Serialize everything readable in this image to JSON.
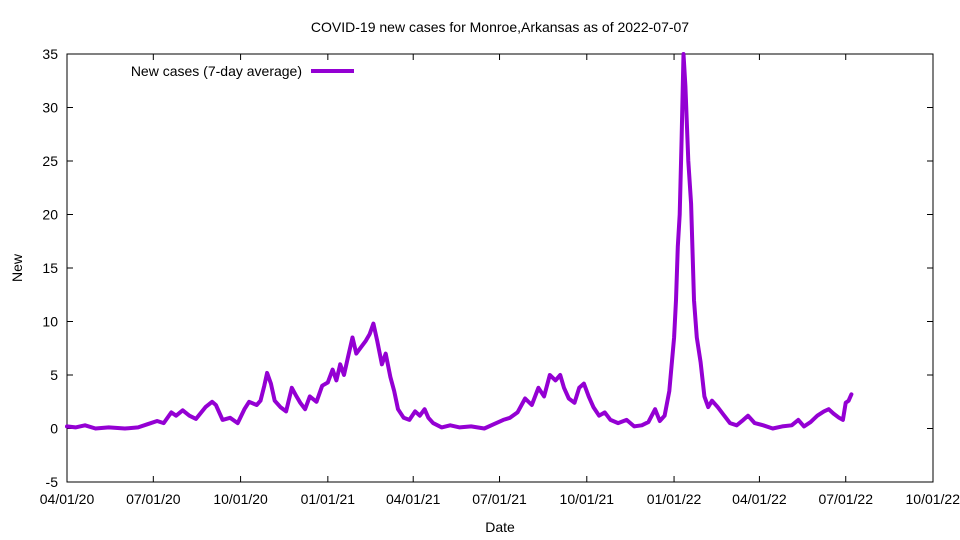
{
  "chart_data": {
    "type": "line",
    "title": "COVID-19 new cases for Monroe,Arkansas as of 2022-07-07",
    "xlabel": "Date",
    "ylabel": "New",
    "xlim": [
      "2020-04-01",
      "2022-10-01"
    ],
    "ylim": [
      -5,
      35
    ],
    "yticks": [
      -5,
      0,
      5,
      10,
      15,
      20,
      25,
      30,
      35
    ],
    "xtick_dates": [
      "2020-04-01",
      "2020-07-01",
      "2020-10-01",
      "2021-01-01",
      "2021-04-01",
      "2021-07-01",
      "2021-10-01",
      "2022-01-01",
      "2022-04-01",
      "2022-07-01",
      "2022-10-01"
    ],
    "xtick_labels": [
      "04/01/20",
      "07/01/20",
      "10/01/20",
      "01/01/21",
      "04/01/21",
      "07/01/21",
      "10/01/21",
      "01/01/22",
      "04/01/22",
      "07/01/22",
      "10/01/22"
    ],
    "grid": false,
    "legend_position": "top-left",
    "series_color": "#9400d3",
    "series": [
      {
        "name": "New cases (7-day average)",
        "points": [
          [
            "2020-04-01",
            0.2
          ],
          [
            "2020-04-10",
            0.1
          ],
          [
            "2020-04-20",
            0.3
          ],
          [
            "2020-05-01",
            0.0
          ],
          [
            "2020-05-15",
            0.1
          ],
          [
            "2020-06-01",
            0.0
          ],
          [
            "2020-06-15",
            0.1
          ],
          [
            "2020-06-25",
            0.4
          ],
          [
            "2020-07-05",
            0.7
          ],
          [
            "2020-07-12",
            0.5
          ],
          [
            "2020-07-20",
            1.5
          ],
          [
            "2020-07-25",
            1.2
          ],
          [
            "2020-08-01",
            1.7
          ],
          [
            "2020-08-08",
            1.2
          ],
          [
            "2020-08-15",
            0.9
          ],
          [
            "2020-08-25",
            2.0
          ],
          [
            "2020-09-01",
            2.5
          ],
          [
            "2020-09-05",
            2.2
          ],
          [
            "2020-09-12",
            0.8
          ],
          [
            "2020-09-20",
            1.0
          ],
          [
            "2020-09-28",
            0.5
          ],
          [
            "2020-10-05",
            1.8
          ],
          [
            "2020-10-10",
            2.5
          ],
          [
            "2020-10-18",
            2.2
          ],
          [
            "2020-10-22",
            2.6
          ],
          [
            "2020-10-26",
            4.0
          ],
          [
            "2020-10-29",
            5.2
          ],
          [
            "2020-11-02",
            4.2
          ],
          [
            "2020-11-06",
            2.6
          ],
          [
            "2020-11-12",
            2.0
          ],
          [
            "2020-11-18",
            1.6
          ],
          [
            "2020-11-24",
            3.8
          ],
          [
            "2020-11-29",
            3.0
          ],
          [
            "2020-12-03",
            2.4
          ],
          [
            "2020-12-08",
            1.8
          ],
          [
            "2020-12-13",
            3.0
          ],
          [
            "2020-12-20",
            2.5
          ],
          [
            "2020-12-26",
            4.0
          ],
          [
            "2021-01-01",
            4.3
          ],
          [
            "2021-01-06",
            5.5
          ],
          [
            "2021-01-10",
            4.5
          ],
          [
            "2021-01-14",
            6.0
          ],
          [
            "2021-01-18",
            5.0
          ],
          [
            "2021-01-22",
            6.6
          ],
          [
            "2021-01-27",
            8.5
          ],
          [
            "2021-01-31",
            7.0
          ],
          [
            "2021-02-05",
            7.6
          ],
          [
            "2021-02-10",
            8.2
          ],
          [
            "2021-02-14",
            8.8
          ],
          [
            "2021-02-18",
            9.8
          ],
          [
            "2021-02-22",
            8.2
          ],
          [
            "2021-02-27",
            6.0
          ],
          [
            "2021-03-03",
            7.0
          ],
          [
            "2021-03-08",
            4.8
          ],
          [
            "2021-03-12",
            3.5
          ],
          [
            "2021-03-16",
            1.8
          ],
          [
            "2021-03-22",
            1.0
          ],
          [
            "2021-03-28",
            0.8
          ],
          [
            "2021-04-03",
            1.6
          ],
          [
            "2021-04-08",
            1.2
          ],
          [
            "2021-04-13",
            1.8
          ],
          [
            "2021-04-17",
            1.0
          ],
          [
            "2021-04-22",
            0.5
          ],
          [
            "2021-05-01",
            0.1
          ],
          [
            "2021-05-10",
            0.3
          ],
          [
            "2021-05-20",
            0.1
          ],
          [
            "2021-06-01",
            0.2
          ],
          [
            "2021-06-15",
            0.0
          ],
          [
            "2021-06-25",
            0.4
          ],
          [
            "2021-07-05",
            0.8
          ],
          [
            "2021-07-12",
            1.0
          ],
          [
            "2021-07-20",
            1.5
          ],
          [
            "2021-07-28",
            2.8
          ],
          [
            "2021-08-04",
            2.2
          ],
          [
            "2021-08-11",
            3.8
          ],
          [
            "2021-08-17",
            3.0
          ],
          [
            "2021-08-23",
            5.0
          ],
          [
            "2021-08-29",
            4.5
          ],
          [
            "2021-09-03",
            5.0
          ],
          [
            "2021-09-07",
            3.8
          ],
          [
            "2021-09-12",
            2.8
          ],
          [
            "2021-09-18",
            2.4
          ],
          [
            "2021-09-23",
            3.8
          ],
          [
            "2021-09-28",
            4.2
          ],
          [
            "2021-10-03",
            3.0
          ],
          [
            "2021-10-08",
            2.0
          ],
          [
            "2021-10-14",
            1.2
          ],
          [
            "2021-10-20",
            1.5
          ],
          [
            "2021-10-26",
            0.8
          ],
          [
            "2021-11-03",
            0.5
          ],
          [
            "2021-11-12",
            0.8
          ],
          [
            "2021-11-20",
            0.2
          ],
          [
            "2021-11-28",
            0.3
          ],
          [
            "2021-12-05",
            0.6
          ],
          [
            "2021-12-12",
            1.8
          ],
          [
            "2021-12-17",
            0.7
          ],
          [
            "2021-12-22",
            1.2
          ],
          [
            "2021-12-27",
            3.5
          ],
          [
            "2022-01-01",
            8.5
          ],
          [
            "2022-01-03",
            12.0
          ],
          [
            "2022-01-05",
            17.0
          ],
          [
            "2022-01-07",
            20.0
          ],
          [
            "2022-01-09",
            27.0
          ],
          [
            "2022-01-11",
            35.0
          ],
          [
            "2022-01-13",
            32.0
          ],
          [
            "2022-01-16",
            25.0
          ],
          [
            "2022-01-19",
            21.0
          ],
          [
            "2022-01-22",
            12.0
          ],
          [
            "2022-01-25",
            8.5
          ],
          [
            "2022-01-29",
            6.2
          ],
          [
            "2022-02-02",
            3.0
          ],
          [
            "2022-02-06",
            2.0
          ],
          [
            "2022-02-10",
            2.6
          ],
          [
            "2022-02-16",
            2.0
          ],
          [
            "2022-02-22",
            1.3
          ],
          [
            "2022-03-01",
            0.5
          ],
          [
            "2022-03-08",
            0.3
          ],
          [
            "2022-03-15",
            0.8
          ],
          [
            "2022-03-20",
            1.2
          ],
          [
            "2022-03-27",
            0.5
          ],
          [
            "2022-04-05",
            0.3
          ],
          [
            "2022-04-15",
            0.0
          ],
          [
            "2022-04-25",
            0.2
          ],
          [
            "2022-05-05",
            0.3
          ],
          [
            "2022-05-12",
            0.8
          ],
          [
            "2022-05-18",
            0.2
          ],
          [
            "2022-05-25",
            0.6
          ],
          [
            "2022-06-01",
            1.2
          ],
          [
            "2022-06-08",
            1.6
          ],
          [
            "2022-06-13",
            1.8
          ],
          [
            "2022-06-18",
            1.4
          ],
          [
            "2022-06-24",
            1.0
          ],
          [
            "2022-06-28",
            0.8
          ],
          [
            "2022-07-01",
            2.4
          ],
          [
            "2022-07-04",
            2.6
          ],
          [
            "2022-07-07",
            3.2
          ]
        ]
      }
    ]
  }
}
